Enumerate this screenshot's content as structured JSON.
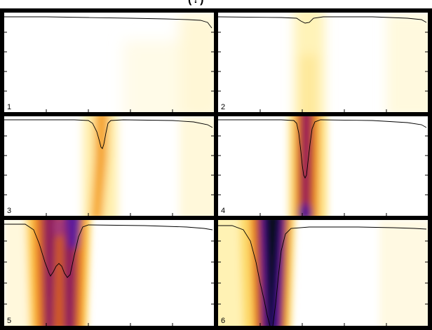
{
  "figure": {
    "title": "(?)",
    "panels": [
      {
        "label": "1"
      },
      {
        "label": "2"
      },
      {
        "label": "3"
      },
      {
        "label": "4"
      },
      {
        "label": "5"
      },
      {
        "label": "6"
      }
    ]
  },
  "colors": {
    "background": "#ffffff",
    "border": "#000000",
    "colormap": [
      "#ffffff",
      "#fff7c0",
      "#ffd24a",
      "#f59a1f",
      "#d2521f",
      "#8c1a5a",
      "#3a0a9a",
      "#000000"
    ]
  }
}
